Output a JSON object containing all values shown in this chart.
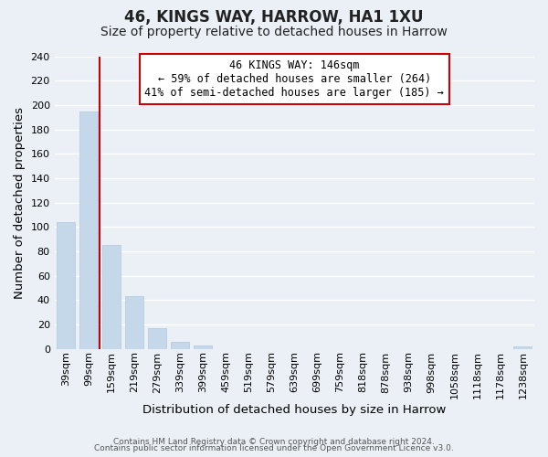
{
  "title": "46, KINGS WAY, HARROW, HA1 1XU",
  "subtitle": "Size of property relative to detached houses in Harrow",
  "xlabel": "Distribution of detached houses by size in Harrow",
  "ylabel": "Number of detached properties",
  "bar_color": "#c5d8ea",
  "bar_edge_color": "#b0c8de",
  "categories": [
    "39sqm",
    "99sqm",
    "159sqm",
    "219sqm",
    "279sqm",
    "339sqm",
    "399sqm",
    "459sqm",
    "519sqm",
    "579sqm",
    "639sqm",
    "699sqm",
    "759sqm",
    "818sqm",
    "878sqm",
    "938sqm",
    "998sqm",
    "1058sqm",
    "1118sqm",
    "1178sqm",
    "1238sqm"
  ],
  "values": [
    104,
    195,
    85,
    43,
    17,
    6,
    3,
    0,
    0,
    0,
    0,
    0,
    0,
    0,
    0,
    0,
    0,
    0,
    0,
    0,
    2
  ],
  "ylim": [
    0,
    240
  ],
  "yticks": [
    0,
    20,
    40,
    60,
    80,
    100,
    120,
    140,
    160,
    180,
    200,
    220,
    240
  ],
  "red_line_x": 1.47,
  "annotation_line1": "46 KINGS WAY: 146sqm",
  "annotation_line2": "← 59% of detached houses are smaller (264)",
  "annotation_line3": "41% of semi-detached houses are larger (185) →",
  "footer_line1": "Contains HM Land Registry data © Crown copyright and database right 2024.",
  "footer_line2": "Contains public sector information licensed under the Open Government Licence v3.0.",
  "background_color": "#eaf0f6",
  "grid_color": "#ffffff",
  "title_fontsize": 12,
  "subtitle_fontsize": 10,
  "tick_fontsize": 8,
  "label_fontsize": 9.5,
  "footer_fontsize": 6.5
}
